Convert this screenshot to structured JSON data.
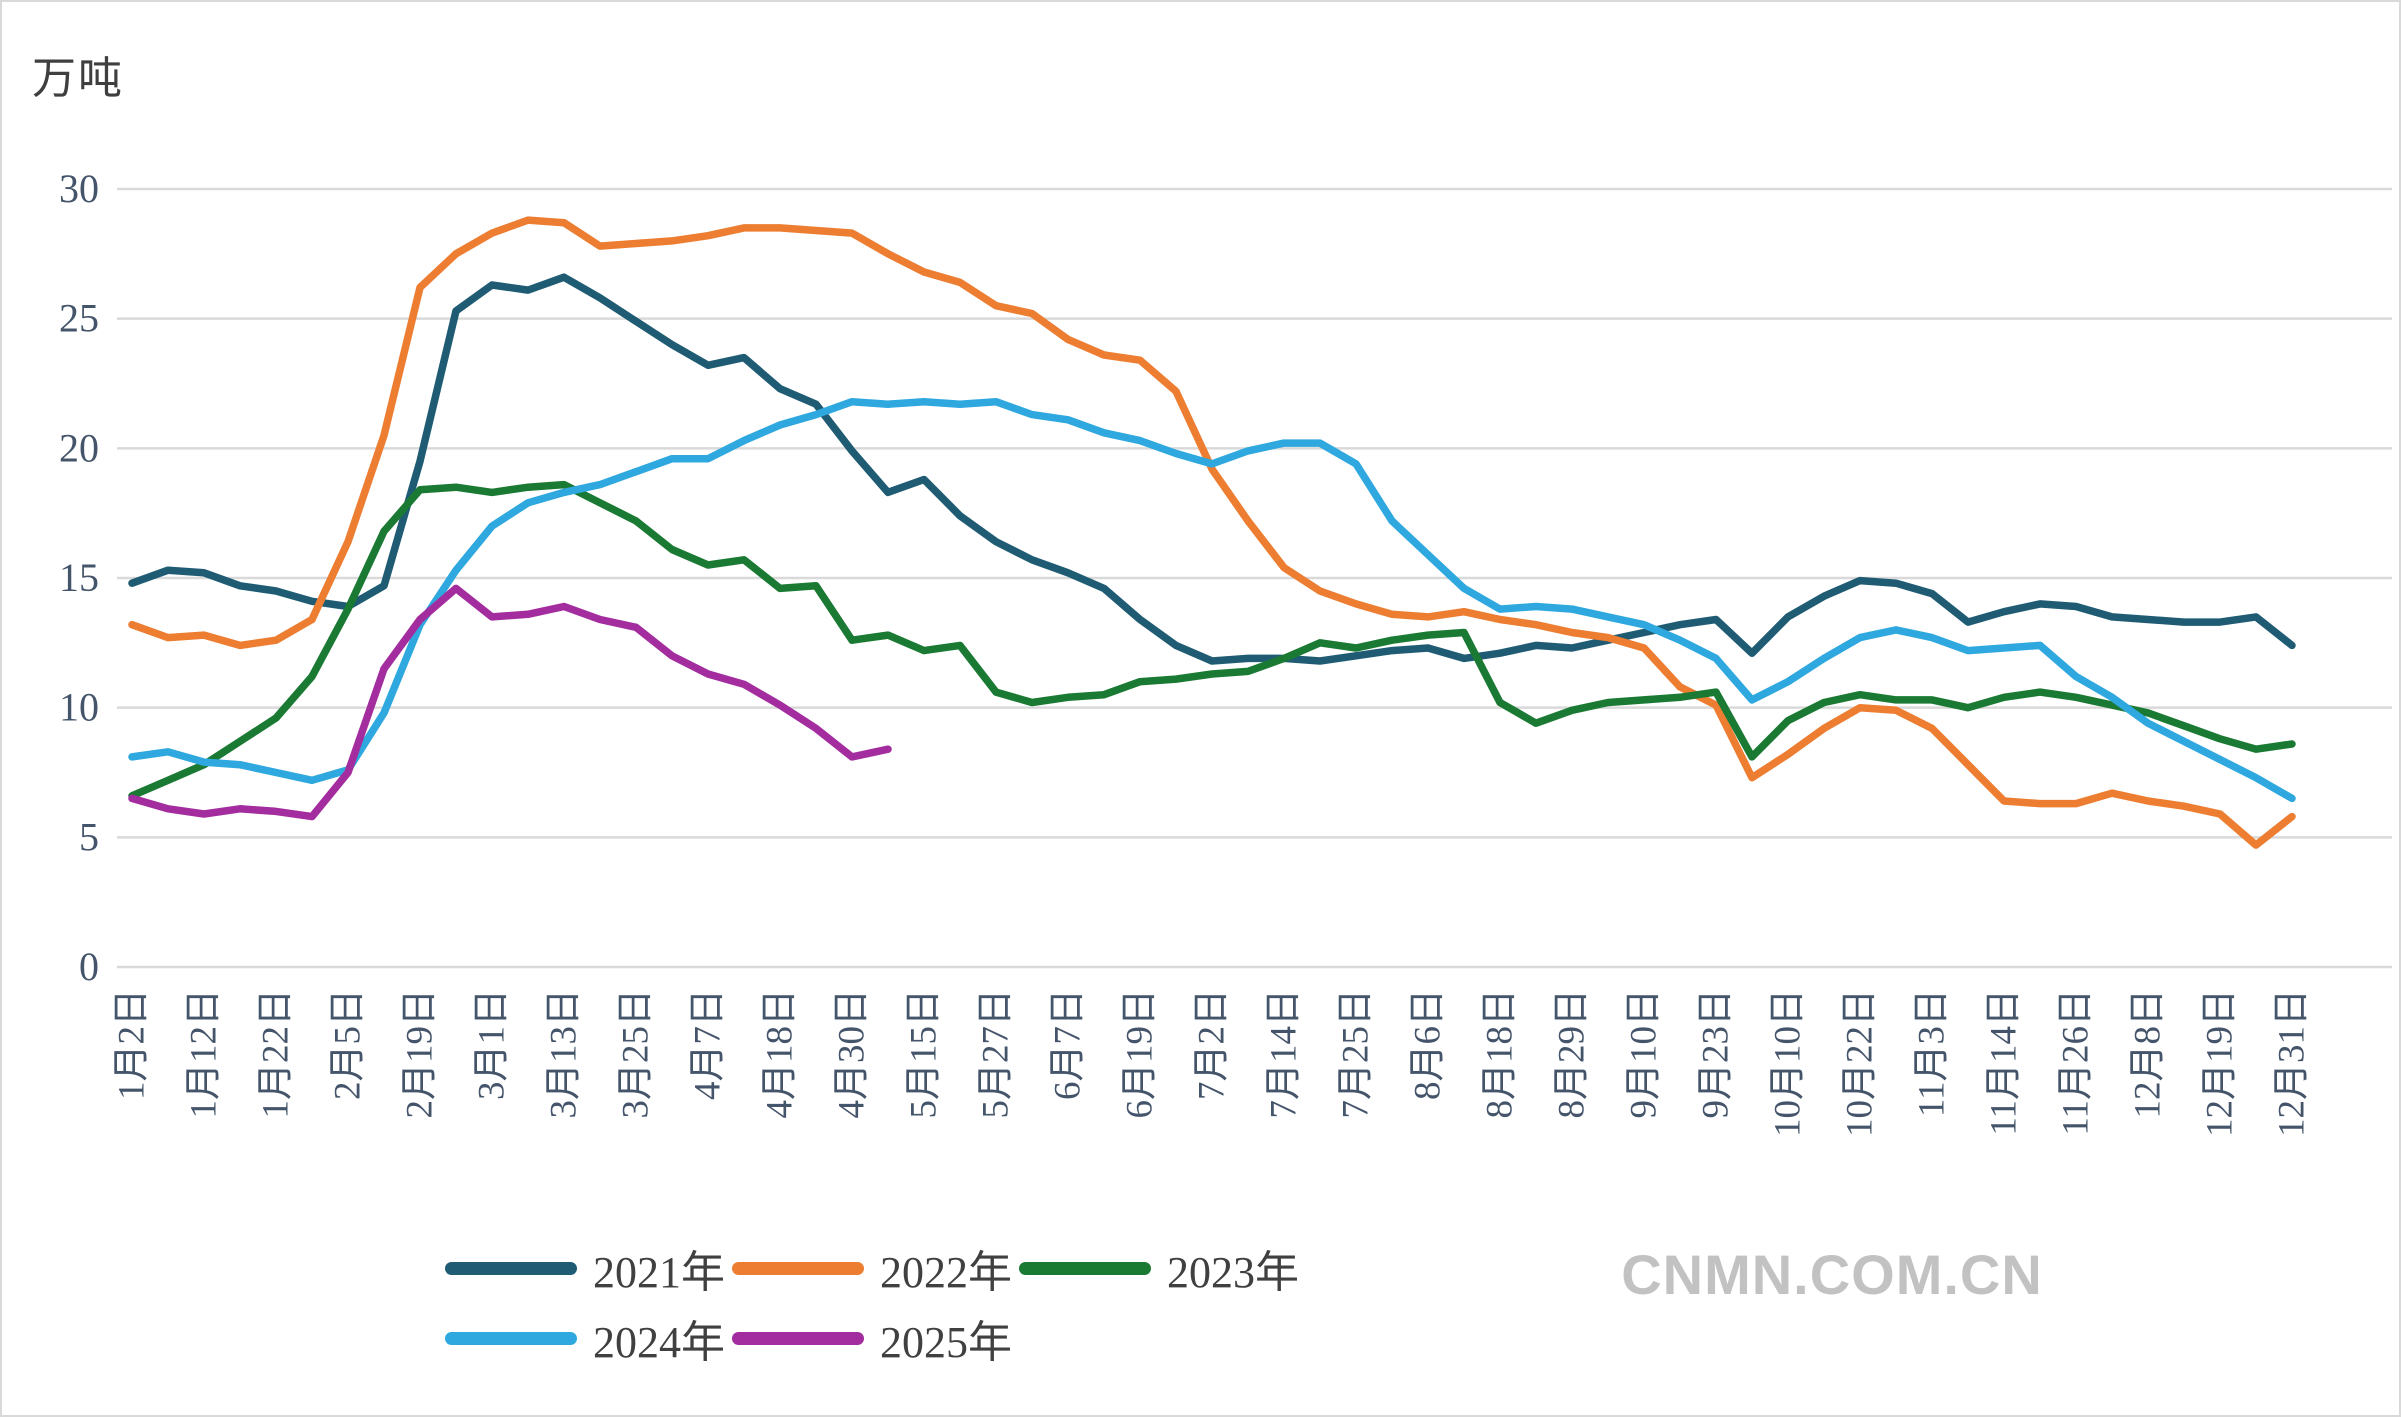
{
  "watermark": {
    "text": "CNMN.COM.CN"
  },
  "legend": {
    "rows": [
      [
        "2021年",
        "2022年",
        "2023年"
      ],
      [
        "2024年",
        "2025年"
      ]
    ]
  },
  "chart_data": {
    "type": "line",
    "title": "",
    "unit_label": "万吨",
    "xlabel": "",
    "ylabel": "万吨",
    "ylim": [
      0,
      30
    ],
    "yticks": [
      0,
      5,
      10,
      15,
      20,
      25,
      30
    ],
    "grid": true,
    "legend_position": "bottom",
    "axis_label_color": "#44546a",
    "gridline_color": "#d9d9d9",
    "samples_per_tick_interval": 2,
    "x_tick_labels": [
      "1月2日",
      "1月12日",
      "1月22日",
      "2月5日",
      "2月19日",
      "3月1日",
      "3月13日",
      "3月25日",
      "4月7日",
      "4月18日",
      "4月30日",
      "5月15日",
      "5月27日",
      "6月7日",
      "6月19日",
      "7月2日",
      "7月14日",
      "7月25日",
      "8月6日",
      "8月18日",
      "8月29日",
      "9月10日",
      "9月23日",
      "10月10日",
      "10月22日",
      "11月3日",
      "11月14日",
      "11月26日",
      "12月8日",
      "12月19日",
      "12月31日"
    ],
    "series": [
      {
        "name": "2021年",
        "color": "#1f5c73",
        "values": [
          14.8,
          15.3,
          15.2,
          14.7,
          14.5,
          14.1,
          13.9,
          14.7,
          19.5,
          25.3,
          26.3,
          26.1,
          26.6,
          25.8,
          24.9,
          24.0,
          23.2,
          23.5,
          22.3,
          21.7,
          19.9,
          18.3,
          18.8,
          17.4,
          16.4,
          15.7,
          15.2,
          14.6,
          13.4,
          12.4,
          11.8,
          11.9,
          11.9,
          11.8,
          12.0,
          12.2,
          12.3,
          11.9,
          12.1,
          12.4,
          12.3,
          12.6,
          12.9,
          13.2,
          13.4,
          12.1,
          13.5,
          14.3,
          14.9,
          14.8,
          14.4,
          13.3,
          13.7,
          14.0,
          13.9,
          13.5,
          13.4,
          13.3,
          13.3,
          13.5,
          12.4
        ]
      },
      {
        "name": "2022年",
        "color": "#ed7d31",
        "values": [
          13.2,
          12.7,
          12.8,
          12.4,
          12.6,
          13.4,
          16.4,
          20.5,
          26.2,
          27.5,
          28.3,
          28.8,
          28.7,
          27.8,
          27.9,
          28.0,
          28.2,
          28.5,
          28.5,
          28.4,
          28.3,
          27.5,
          26.8,
          26.4,
          25.5,
          25.2,
          24.2,
          23.6,
          23.4,
          22.2,
          19.2,
          17.2,
          15.4,
          14.5,
          14.0,
          13.6,
          13.5,
          13.7,
          13.4,
          13.2,
          12.9,
          12.7,
          12.3,
          10.8,
          10.1,
          7.3,
          8.2,
          9.2,
          10.0,
          9.9,
          9.2,
          7.8,
          6.4,
          6.3,
          6.3,
          6.7,
          6.4,
          6.2,
          5.9,
          4.7,
          5.8
        ]
      },
      {
        "name": "2023年",
        "color": "#1a7a33",
        "values": [
          6.6,
          7.2,
          7.8,
          8.7,
          9.6,
          11.2,
          13.8,
          16.8,
          18.4,
          18.5,
          18.3,
          18.5,
          18.6,
          17.9,
          17.2,
          16.1,
          15.5,
          15.7,
          14.6,
          14.7,
          12.6,
          12.8,
          12.2,
          12.4,
          10.6,
          10.2,
          10.4,
          10.5,
          11.0,
          11.1,
          11.3,
          11.4,
          11.9,
          12.5,
          12.3,
          12.6,
          12.8,
          12.9,
          10.2,
          9.4,
          9.9,
          10.2,
          10.3,
          10.4,
          10.6,
          8.1,
          9.5,
          10.2,
          10.5,
          10.3,
          10.3,
          10.0,
          10.4,
          10.6,
          10.4,
          10.1,
          9.8,
          9.3,
          8.8,
          8.4,
          8.6
        ]
      },
      {
        "name": "2024年",
        "color": "#2ea8df",
        "values": [
          8.1,
          8.3,
          7.9,
          7.8,
          7.5,
          7.2,
          7.6,
          9.8,
          13.2,
          15.3,
          17.0,
          17.9,
          18.3,
          18.6,
          19.1,
          19.6,
          19.6,
          20.3,
          20.9,
          21.3,
          21.8,
          21.7,
          21.8,
          21.7,
          21.8,
          21.3,
          21.1,
          20.6,
          20.3,
          19.8,
          19.4,
          19.9,
          20.2,
          20.2,
          19.4,
          17.2,
          15.9,
          14.6,
          13.8,
          13.9,
          13.8,
          13.5,
          13.2,
          12.6,
          11.9,
          10.3,
          11.0,
          11.9,
          12.7,
          13.0,
          12.7,
          12.2,
          12.3,
          12.4,
          11.2,
          10.4,
          9.4,
          8.7,
          8.0,
          7.3,
          6.5
        ]
      },
      {
        "name": "2025年",
        "color": "#a32c9e",
        "values": [
          6.5,
          6.1,
          5.9,
          6.1,
          6.0,
          5.8,
          7.5,
          11.5,
          13.4,
          14.6,
          13.5,
          13.6,
          13.9,
          13.4,
          13.1,
          12.0,
          11.3,
          10.9,
          10.1,
          9.2,
          8.1,
          8.4
        ]
      }
    ]
  }
}
